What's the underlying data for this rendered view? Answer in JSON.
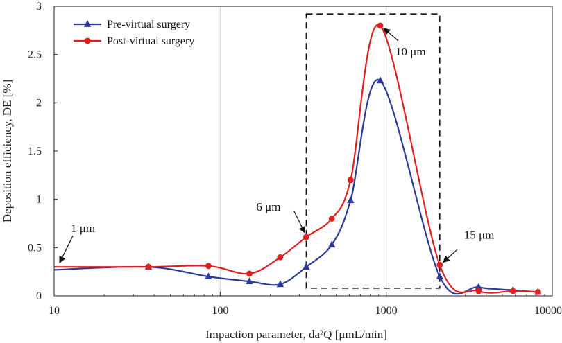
{
  "chart_data": {
    "type": "line",
    "title": "",
    "xlabel": "Impaction parameter, da²Q [μmL/min]",
    "ylabel": "Deposition efficiency, DE [%]",
    "xscale": "log",
    "xlim": [
      10,
      10000
    ],
    "ylim": [
      0,
      3
    ],
    "xticks": [
      10,
      100,
      1000,
      10000
    ],
    "xtick_labels": [
      "10",
      "100",
      "1000",
      "10000"
    ],
    "yticks": [
      0,
      0.5,
      1,
      1.5,
      2,
      2.5,
      3
    ],
    "ytick_labels": [
      "0",
      "0.5",
      "1",
      "1.5",
      "2",
      "2.5",
      "3"
    ],
    "grid": "vertical at 100 and 1000",
    "legend_position": "top-left",
    "series": [
      {
        "name": "Pre-virtual surgery",
        "color": "#2b3a9a",
        "marker": "triangle",
        "x": [
          10,
          37,
          85,
          150,
          230,
          330,
          470,
          610,
          920,
          2100,
          3600,
          5800,
          8200
        ],
        "y": [
          0.27,
          0.3,
          0.2,
          0.15,
          0.12,
          0.3,
          0.53,
          0.99,
          2.23,
          0.2,
          0.09,
          0.06,
          0.04
        ]
      },
      {
        "name": "Post-virtual surgery",
        "color": "#e02020",
        "marker": "circle",
        "x": [
          10,
          37,
          85,
          150,
          230,
          330,
          470,
          610,
          920,
          2100,
          3600,
          5800,
          8200
        ],
        "y": [
          0.3,
          0.3,
          0.31,
          0.23,
          0.4,
          0.61,
          0.8,
          1.2,
          2.8,
          0.32,
          0.05,
          0.05,
          0.04
        ]
      }
    ],
    "annotations": [
      {
        "text": "1 μm",
        "x": 10,
        "y": 0.3
      },
      {
        "text": "6 μm",
        "x": 330,
        "y": 0.61
      },
      {
        "text": "10 μm",
        "x": 920,
        "y": 2.8
      },
      {
        "text": "15 μm",
        "x": 2100,
        "y": 0.32
      }
    ],
    "highlight_box": {
      "x_range": [
        330,
        2100
      ],
      "y_range": [
        0.08,
        2.92
      ],
      "style": "dashed"
    }
  }
}
